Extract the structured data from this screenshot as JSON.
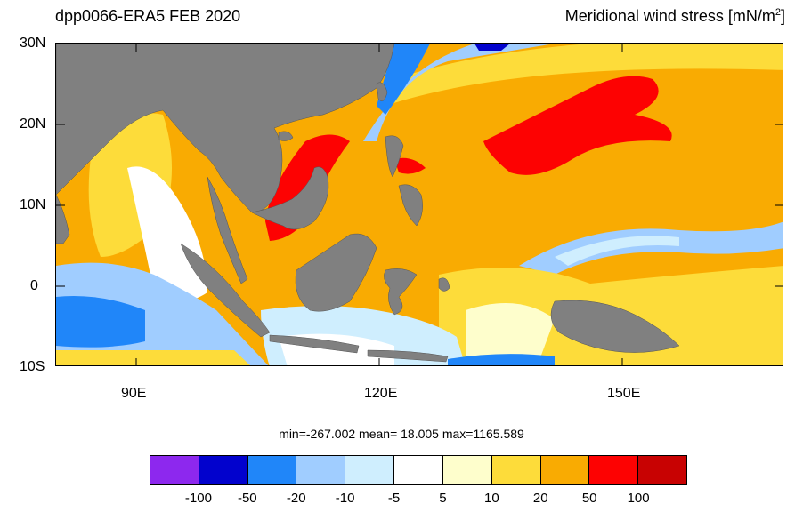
{
  "header": {
    "left_title": "dpp0066-ERA5  FEB 2020",
    "right_title": "Meridional wind stress [mN/m",
    "right_title_sup": "2",
    "right_title_end": "]"
  },
  "map": {
    "region": "Maritime Continent / Western Pacific",
    "lat_labels": [
      "30N",
      "20N",
      "10N",
      "0",
      "10S"
    ],
    "lon_labels": [
      "90E",
      "120E",
      "150E"
    ],
    "land_color": "#808080"
  },
  "stats": {
    "text": "min=-267.002  mean=  18.005  max=1165.589"
  },
  "colorbar": {
    "colors": [
      "#8d28ee",
      "#0202cd",
      "#2086f9",
      "#a0cdff",
      "#cfeefe",
      "#ffffff",
      "#fefecc",
      "#fddc3a",
      "#f9ab02",
      "#fd0202",
      "#c80202"
    ],
    "labels": [
      "-100",
      "-50",
      "-20",
      "-10",
      "-5",
      "5",
      "10",
      "20",
      "50",
      "100"
    ]
  }
}
